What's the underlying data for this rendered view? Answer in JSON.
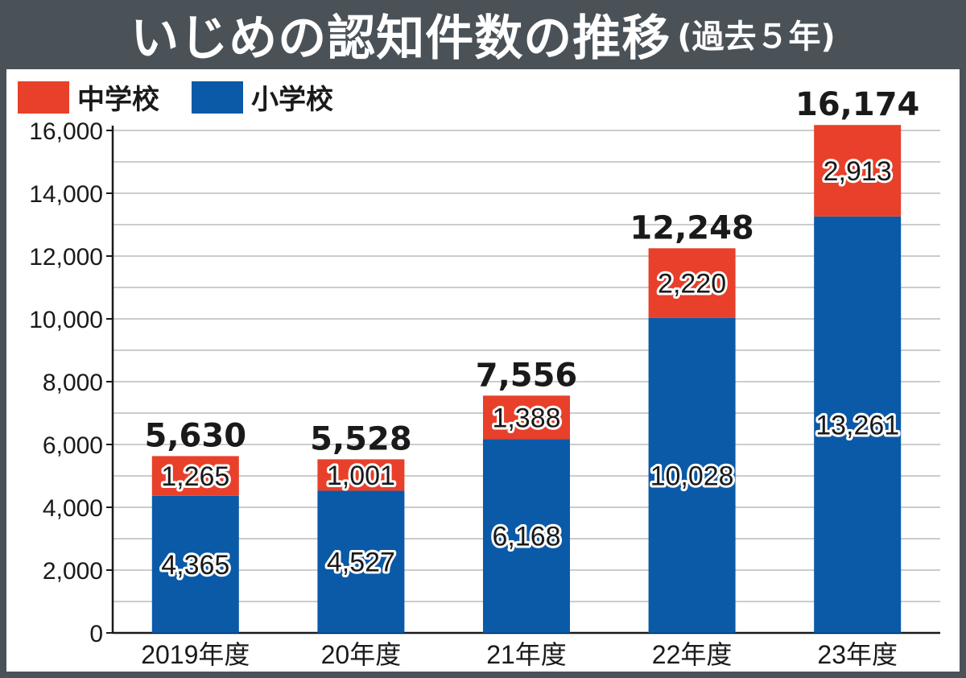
{
  "title": {
    "main": "いじめの認知件数の推移",
    "sub": "(過去５年)"
  },
  "colors": {
    "frame": "#4a5258",
    "middle_school": "#e8402a",
    "elementary_school": "#0a5aa8",
    "grid": "#bbbbbb"
  },
  "chart_data": {
    "type": "bar",
    "stacked": true,
    "categories": [
      "2019年度",
      "20年度",
      "21年度",
      "22年度",
      "23年度"
    ],
    "series": [
      {
        "name": "小学校",
        "color": "#0a5aa8",
        "values": [
          4365,
          4527,
          6168,
          10028,
          13261
        ],
        "labels": [
          "4,365",
          "4,527",
          "6,168",
          "10,028",
          "13,261"
        ]
      },
      {
        "name": "中学校",
        "color": "#e8402a",
        "values": [
          1265,
          1001,
          1388,
          2220,
          2913
        ],
        "labels": [
          "1,265",
          "1,001",
          "1,388",
          "2,220",
          "2,913"
        ]
      }
    ],
    "totals": [
      5630,
      5528,
      7556,
      12248,
      16174
    ],
    "total_labels": [
      "5,630",
      "5,528",
      "7,556",
      "12,248",
      "16,174"
    ],
    "ylim": [
      0,
      16000
    ],
    "yticks": [
      0,
      2000,
      4000,
      6000,
      8000,
      10000,
      12000,
      14000,
      16000
    ],
    "ytick_labels": [
      "0",
      "2,000",
      "4,000",
      "6,000",
      "8,000",
      "10,000",
      "12,000",
      "14,000",
      "16,000"
    ],
    "grid": true,
    "legend": [
      {
        "name": "中学校",
        "color": "#e8402a"
      },
      {
        "name": "小学校",
        "color": "#0a5aa8"
      }
    ],
    "legend_position": "top-left"
  }
}
